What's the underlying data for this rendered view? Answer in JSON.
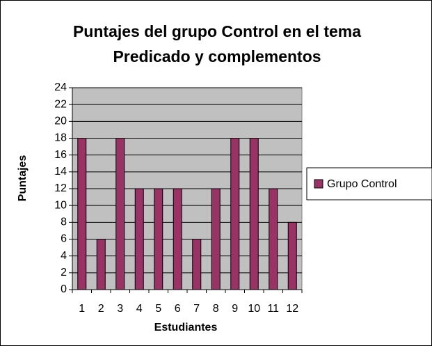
{
  "chart_data": {
    "type": "bar",
    "title": [
      "Puntajes del grupo Control en el tema",
      "Predicado y complementos"
    ],
    "x_label": "Estudiantes",
    "y_label": "Puntajes",
    "categories": [
      "1",
      "2",
      "3",
      "4",
      "5",
      "6",
      "7",
      "8",
      "9",
      "10",
      "11",
      "12"
    ],
    "series": [
      {
        "name": "Grupo Control",
        "color": "#993366",
        "values": [
          18,
          6,
          18,
          12,
          12,
          12,
          6,
          12,
          18,
          18,
          12,
          8
        ]
      }
    ],
    "ylim": [
      0,
      24
    ],
    "yticks": [
      0,
      2,
      4,
      6,
      8,
      10,
      12,
      14,
      16,
      18,
      20,
      22,
      24
    ],
    "grid": true,
    "legend": "right"
  }
}
